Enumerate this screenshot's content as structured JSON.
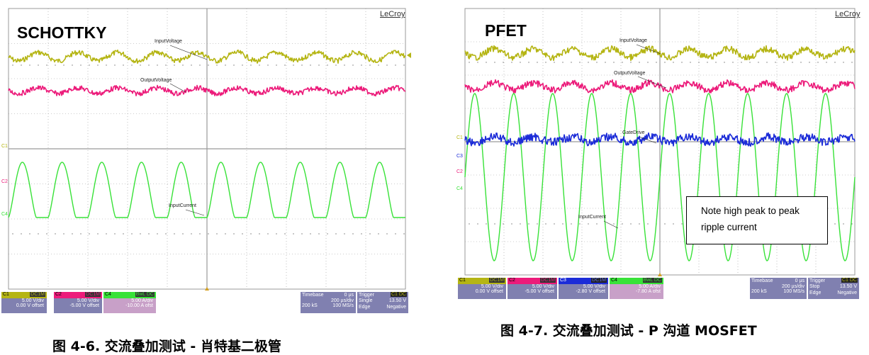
{
  "colors": {
    "c1": "#b5b514",
    "c2": "#ec1b7a",
    "c3": "#1c2cd8",
    "c4": "#38e238",
    "grid": "#9a9a9a",
    "panel_bg": "#8080b0",
    "panel_c4_bg": "#c8a0c8"
  },
  "left": {
    "title": "SCHOTTKY",
    "brand": "LeCroy",
    "labels": {
      "input_voltage": "InputVoltage",
      "output_voltage": "OutputVoltage",
      "input_current": "InputCurrent"
    },
    "channels": [
      {
        "id": "C1",
        "coupling": "DC1M",
        "scale": "5.00 V/div",
        "offset": "0.00 V offset"
      },
      {
        "id": "C2",
        "coupling": "DC1M",
        "scale": "5.00 V/div",
        "offset": "-5.00 V offset"
      },
      {
        "id": "C4",
        "coupling": "BwL DC",
        "scale": "5.00 A/div",
        "offset": "-10.00 A ofst"
      }
    ],
    "timebase": {
      "label": "Timebase",
      "pos": "0 µs",
      "div": "200 µs/div",
      "samples": "200 kS",
      "rate": "100 MS/s"
    },
    "trigger": {
      "label": "Trigger",
      "src": "C1 DC",
      "mode": "Single",
      "level": "13.50 V",
      "type": "Edge",
      "slope": "Negative"
    },
    "caption": "图 4-6. 交流叠加测试 - 肖特基二极管"
  },
  "right": {
    "title": "PFET",
    "brand": "LeCroy",
    "labels": {
      "input_voltage": "InputVoltage",
      "output_voltage": "OutputVoltage",
      "gate_drive": "GateDrive",
      "input_current": "InputCurrent"
    },
    "note": {
      "line1": "Note high peak to peak",
      "line2": "ripple current"
    },
    "channels": [
      {
        "id": "C1",
        "coupling": "DC1M",
        "scale": "5.00 V/div",
        "offset": "0.00 V offset"
      },
      {
        "id": "C2",
        "coupling": "DC1M",
        "scale": "5.00 V/div",
        "offset": "-5.00 V offset"
      },
      {
        "id": "C3",
        "coupling": "DC1M",
        "scale": "5.00 V/div",
        "offset": "-2.80 V offset"
      },
      {
        "id": "C4",
        "coupling": "BwL DC",
        "scale": "5.00 A/div",
        "offset": "-7.80 A ofst"
      }
    ],
    "timebase": {
      "label": "Timebase",
      "pos": "0 µs",
      "div": "200 µs/div",
      "samples": "200 kS",
      "rate": "100 MS/s"
    },
    "trigger": {
      "label": "Trigger",
      "src": "C1 DC",
      "mode": "Stop",
      "level": "13.50 V",
      "type": "Edge",
      "slope": "Negative"
    },
    "caption": "图 4-7. 交流叠加测试 - P 沟道 MOSFET"
  }
}
